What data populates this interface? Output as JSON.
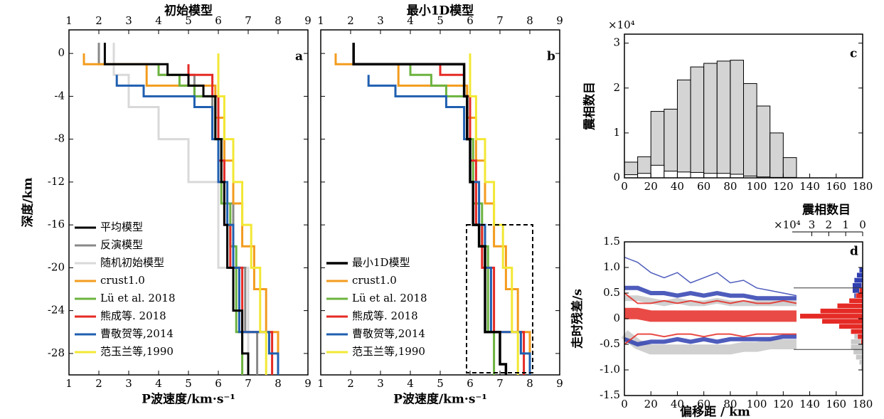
{
  "chart_data": [
    {
      "type": "step",
      "title": "初始模型",
      "xlabel": "P波速度/km·s⁻¹",
      "ylabel": "深度/km",
      "panel": "a",
      "xlim": [
        1,
        9
      ],
      "ylim": [
        -30,
        2.2
      ],
      "xticks": [
        1,
        2,
        3,
        4,
        5,
        6,
        7,
        8,
        9
      ],
      "yticks": [
        0,
        -4,
        -8,
        -12,
        -16,
        -20,
        -24,
        -28
      ],
      "xticks_top": true,
      "ytick_labels": true,
      "legend": "lower left",
      "series": [
        {
          "name": "平均模型",
          "color": "#000000",
          "width": 3,
          "x": [
            2.2,
            2.2,
            4.3,
            4.3,
            5.0,
            5.0,
            5.5,
            5.5,
            5.9,
            5.9,
            6.1,
            6.1,
            6.2,
            6.2,
            6.3,
            6.3,
            6.5,
            6.5,
            6.8,
            6.8,
            7.0,
            7.0
          ],
          "y": [
            1,
            -1,
            -1,
            -2,
            -2,
            -3,
            -3,
            -4,
            -4,
            -8,
            -8,
            -12,
            -12,
            -16,
            -16,
            -20,
            -20,
            -24,
            -24,
            -28,
            -28,
            -30
          ]
        },
        {
          "name": "反演模型",
          "color": "#888888",
          "width": 3,
          "x": [
            2.0,
            2.0,
            4.0,
            4.0,
            5.2,
            5.2,
            5.8,
            5.8,
            6.2,
            6.2,
            6.5,
            6.5,
            6.9,
            6.9,
            7.3,
            7.3
          ],
          "y": [
            1,
            -1,
            -1,
            -2,
            -2,
            -4,
            -4,
            -8,
            -8,
            -14,
            -14,
            -20,
            -20,
            -26,
            -26,
            -30
          ]
        },
        {
          "name": "随机初始模型",
          "color": "#d9d9d9",
          "width": 3,
          "x": [
            2.5,
            2.5,
            3.0,
            3.0,
            4.0,
            4.0,
            5.0,
            5.0,
            6.0,
            6.0,
            7.0,
            7.0
          ],
          "y": [
            1,
            -2,
            -2,
            -5,
            -5,
            -8,
            -8,
            -12,
            -12,
            -20,
            -20,
            -30
          ]
        },
        {
          "name": "crust1.0",
          "color": "#f39c1e",
          "width": 3,
          "x": [
            1.5,
            1.5,
            3.6,
            3.6,
            5.9,
            5.9,
            6.2,
            6.2,
            6.5,
            6.5,
            6.8,
            6.8,
            7.2,
            7.2,
            7.6,
            7.6,
            8.0,
            8.0
          ],
          "y": [
            0,
            -1,
            -1,
            -3,
            -3,
            -6,
            -6,
            -10,
            -10,
            -14,
            -14,
            -18,
            -18,
            -22,
            -22,
            -26,
            -26,
            -30
          ]
        },
        {
          "name": "Lü et al. 2018",
          "color": "#6cb33f",
          "width": 3,
          "x": [
            4.0,
            4.0,
            4.7,
            4.7,
            5.2,
            5.2,
            5.9,
            5.9,
            6.1,
            6.1,
            6.4,
            6.4,
            6.6,
            6.6,
            6.8,
            6.8
          ],
          "y": [
            -1,
            -2,
            -2,
            -3,
            -3,
            -4,
            -4,
            -8,
            -8,
            -14,
            -14,
            -18,
            -18,
            -26,
            -26,
            -30
          ]
        },
        {
          "name": "熊成等. 2018",
          "color": "#e52a25",
          "width": 3,
          "x": [
            5.0,
            5.0,
            5.8,
            5.8,
            6.0,
            6.0,
            6.2,
            6.2,
            6.4,
            6.4,
            6.8,
            6.8,
            7.8,
            7.8
          ],
          "y": [
            -1,
            -2,
            -2,
            -4,
            -4,
            -10,
            -10,
            -16,
            -16,
            -20,
            -20,
            -26,
            -26,
            -30
          ]
        },
        {
          "name": "曹敬贺等,2014",
          "color": "#1f5fb0",
          "width": 3,
          "x": [
            2.6,
            2.6,
            3.5,
            3.5,
            5.2,
            5.2,
            5.8,
            5.8,
            6.0,
            6.0,
            6.3,
            6.3,
            6.5,
            6.5,
            6.7,
            6.7,
            7.7,
            7.7,
            8.0,
            8.0
          ],
          "y": [
            -2,
            -3,
            -3,
            -4,
            -4,
            -5,
            -5,
            -8,
            -8,
            -12,
            -12,
            -16,
            -16,
            -20,
            -20,
            -26,
            -26,
            -28,
            -28,
            -30
          ]
        },
        {
          "name": "范玉兰等,1990",
          "color": "#f2e834",
          "width": 3,
          "x": [
            6.0,
            6.0,
            6.2,
            6.2,
            6.5,
            6.5,
            6.8,
            6.8,
            7.1,
            7.1,
            7.4,
            7.4,
            7.6,
            7.6
          ],
          "y": [
            0,
            -4,
            -4,
            -8,
            -8,
            -12,
            -12,
            -16,
            -16,
            -20,
            -20,
            -26,
            -26,
            -30
          ]
        }
      ]
    },
    {
      "type": "step",
      "title": "最小1D模型",
      "xlabel": "P波速度/km·s⁻¹",
      "panel": "b",
      "xlim": [
        1,
        9
      ],
      "ylim": [
        -30,
        2.2
      ],
      "xticks": [
        1,
        2,
        3,
        4,
        5,
        6,
        7,
        8,
        9
      ],
      "yticks": [
        0,
        -4,
        -8,
        -12,
        -16,
        -20,
        -24,
        -28
      ],
      "xticks_top": true,
      "ytick_labels": false,
      "legend": "lower left",
      "series": [
        {
          "name": "最小1D模型",
          "color": "#000000",
          "width": 3.5,
          "x": [
            2.1,
            2.1,
            5.8,
            5.8,
            5.9,
            5.9,
            6.0,
            6.0,
            6.1,
            6.1,
            6.3,
            6.3,
            6.5,
            6.5,
            7.0,
            7.0,
            7.2,
            7.2
          ],
          "y": [
            1,
            -1,
            -1,
            -4,
            -4,
            -8,
            -8,
            -12,
            -12,
            -16,
            -16,
            -18,
            -18,
            -26,
            -26,
            -29,
            -29,
            -30
          ]
        },
        {
          "name": "crust1.0",
          "color": "#f39c1e",
          "width": 3,
          "x": [
            1.5,
            1.5,
            3.6,
            3.6,
            5.9,
            5.9,
            6.2,
            6.2,
            6.5,
            6.5,
            6.8,
            6.8,
            7.2,
            7.2,
            7.6,
            7.6,
            8.0,
            8.0
          ],
          "y": [
            0,
            -1,
            -1,
            -3,
            -3,
            -6,
            -6,
            -10,
            -10,
            -14,
            -14,
            -18,
            -18,
            -22,
            -22,
            -26,
            -26,
            -30
          ]
        },
        {
          "name": "Lü et al. 2018",
          "color": "#6cb33f",
          "width": 3,
          "x": [
            4.0,
            4.0,
            4.7,
            4.7,
            5.2,
            5.2,
            5.9,
            5.9,
            6.1,
            6.1,
            6.4,
            6.4,
            6.6,
            6.6,
            6.8,
            6.8
          ],
          "y": [
            -1,
            -2,
            -2,
            -3,
            -3,
            -4,
            -4,
            -8,
            -8,
            -14,
            -14,
            -18,
            -18,
            -26,
            -26,
            -30
          ]
        },
        {
          "name": "熊成等. 2018",
          "color": "#e52a25",
          "width": 3,
          "x": [
            5.0,
            5.0,
            5.8,
            5.8,
            6.0,
            6.0,
            6.2,
            6.2,
            6.4,
            6.4,
            6.8,
            6.8,
            7.8,
            7.8
          ],
          "y": [
            -1,
            -2,
            -2,
            -4,
            -4,
            -10,
            -10,
            -16,
            -16,
            -20,
            -20,
            -26,
            -26,
            -30
          ]
        },
        {
          "name": "曹敬贺等,2014",
          "color": "#1f5fb0",
          "width": 3,
          "x": [
            2.6,
            2.6,
            3.5,
            3.5,
            5.2,
            5.2,
            5.8,
            5.8,
            6.0,
            6.0,
            6.3,
            6.3,
            6.5,
            6.5,
            6.7,
            6.7,
            7.7,
            7.7,
            8.0,
            8.0
          ],
          "y": [
            -2,
            -3,
            -3,
            -4,
            -4,
            -5,
            -5,
            -8,
            -8,
            -12,
            -12,
            -16,
            -16,
            -20,
            -20,
            -26,
            -26,
            -28,
            -28,
            -30
          ]
        },
        {
          "name": "范玉兰等,1990",
          "color": "#f2e834",
          "width": 3,
          "x": [
            6.0,
            6.0,
            6.2,
            6.2,
            6.5,
            6.5,
            6.8,
            6.8,
            7.1,
            7.1,
            7.4,
            7.4,
            7.6,
            7.6
          ],
          "y": [
            0,
            -4,
            -4,
            -8,
            -8,
            -12,
            -12,
            -16,
            -16,
            -20,
            -20,
            -26,
            -26,
            -30
          ]
        }
      ]
    },
    {
      "type": "histogram",
      "panel": "c",
      "ylabel": "震相数目",
      "multiplier": "×10⁴",
      "xlim": [
        0,
        180
      ],
      "ylim": [
        0,
        3.2
      ],
      "xticks": [
        0,
        20,
        40,
        60,
        80,
        100,
        120,
        140,
        160,
        180
      ],
      "yticks": [
        0,
        1,
        2,
        3
      ],
      "bins": [
        0,
        10,
        20,
        30,
        40,
        50,
        60,
        70,
        80,
        90,
        100,
        110,
        120,
        130
      ],
      "series": [
        {
          "color": "#d4d4d4",
          "values": [
            0.35,
            0.47,
            1.48,
            1.53,
            2.18,
            2.47,
            2.55,
            2.6,
            2.62,
            2.1,
            1.6,
            1.0,
            0.45
          ]
        },
        {
          "color": "#ffffff",
          "values": [
            0.07,
            0.1,
            0.28,
            0.15,
            0.13,
            0.12,
            0.1,
            0.1,
            0.08,
            0.04,
            0.02,
            0.01,
            0.01
          ]
        }
      ]
    },
    {
      "type": "line",
      "panel": "d",
      "xlabel": "偏移距 / km",
      "ylabel": "走时残差/s",
      "xlim": [
        0,
        180
      ],
      "ylim": [
        -1.5,
        1.5
      ],
      "xticks": [
        0,
        20,
        40,
        60,
        80,
        100,
        120,
        140,
        160,
        180
      ],
      "yticks": [
        -1.5,
        {
          "value": -1.0,
          "label": "-1.0"
        },
        -0.5,
        0,
        0.5,
        {
          "value": 1.0,
          "label": "1.0"
        },
        1.5
      ],
      "x": [
        0,
        10,
        20,
        30,
        40,
        50,
        60,
        70,
        80,
        90,
        100,
        110,
        120,
        130
      ],
      "series": [
        {
          "color": "#c8c8c8",
          "width": 14,
          "values": [
            -0.3,
            -0.5,
            -0.6,
            -0.6,
            -0.6,
            -0.6,
            -0.6,
            -0.6,
            -0.6,
            -0.55,
            -0.55,
            -0.5,
            -0.5,
            -0.5
          ]
        },
        {
          "color": "#c8c8c8",
          "width": 8,
          "values": [
            0.4,
            0.4,
            0.35,
            0.3,
            0.35,
            0.3,
            0.3,
            0.35,
            0.3,
            0.3,
            0.3,
            0.3,
            0.3,
            0.3
          ]
        },
        {
          "color": "#2f3fb0",
          "width": 1.5,
          "values": [
            1.2,
            1.1,
            0.9,
            0.8,
            0.9,
            0.7,
            0.8,
            0.9,
            0.7,
            0.75,
            0.6,
            0.55,
            0.5,
            0.45
          ]
        },
        {
          "color": "#2f3fb0",
          "width": 6,
          "values": [
            0.6,
            0.6,
            0.5,
            0.5,
            0.45,
            0.5,
            0.45,
            0.5,
            0.45,
            0.45,
            0.4,
            0.4,
            0.4,
            0.4
          ]
        },
        {
          "color": "#2f3fb0",
          "width": 6,
          "values": [
            -0.4,
            -0.5,
            -0.45,
            -0.45,
            -0.4,
            -0.45,
            -0.4,
            -0.45,
            -0.4,
            -0.4,
            -0.4,
            -0.4,
            -0.35,
            -0.35
          ]
        },
        {
          "color": "#e52a25",
          "width": 16,
          "values": [
            0.1,
            0.1,
            0.05,
            0.05,
            0.05,
            0.05,
            0.05,
            0.05,
            0.05,
            0.05,
            0.05,
            0.05,
            0.05,
            0.05
          ]
        },
        {
          "color": "#e52a25",
          "width": 2,
          "values": [
            0.5,
            0.3,
            0.3,
            0.35,
            0.3,
            0.35,
            0.3,
            0.35,
            0.3,
            0.35,
            0.3,
            0.3,
            0.35,
            0.3
          ]
        },
        {
          "color": "#e52a25",
          "width": 2,
          "values": [
            -0.5,
            -0.3,
            -0.3,
            -0.35,
            -0.3,
            -0.3,
            -0.35,
            -0.3,
            -0.3,
            -0.35,
            -0.3,
            -0.3,
            -0.3,
            -0.3
          ]
        }
      ],
      "hist_label": "震相数目",
      "hist_multiplier": "×10⁴",
      "hist_xlim": [
        0,
        3.9
      ],
      "hist_xticks": [
        3,
        2,
        1,
        0
      ],
      "hlines": [
        0.6,
        -0.6
      ],
      "hist_bins": [
        -1.0,
        -0.9,
        -0.8,
        -0.7,
        -0.6,
        -0.5,
        -0.4,
        -0.3,
        -0.2,
        -0.1,
        0,
        0.1,
        0.2,
        0.3,
        0.4,
        0.5,
        0.6,
        0.7,
        0.8,
        0.9,
        1.0
      ],
      "hist_series": [
        {
          "color": "#c8c8c8",
          "values": [
            0.1,
            0.2,
            0.4,
            0.55,
            0.7,
            0.7,
            0.5,
            0.3,
            0.2,
            0.1,
            0.1,
            0.1,
            0.1,
            0.1,
            0.1,
            0.1,
            0,
            0,
            0,
            0
          ]
        },
        {
          "color": "#2f3fb0",
          "values": [
            0,
            0,
            0,
            0,
            0,
            0,
            0,
            0,
            0,
            0,
            0,
            0,
            0.1,
            0.3,
            0.5,
            0.6,
            0.6,
            0.5,
            0.35,
            0.2
          ]
        },
        {
          "color": "#e52a25",
          "values": [
            0,
            0,
            0,
            0,
            0.02,
            0.1,
            0.3,
            0.7,
            1.4,
            2.4,
            3.7,
            2.5,
            1.5,
            0.8,
            0.4,
            0.2,
            0.05,
            0,
            0,
            0
          ]
        }
      ]
    }
  ]
}
